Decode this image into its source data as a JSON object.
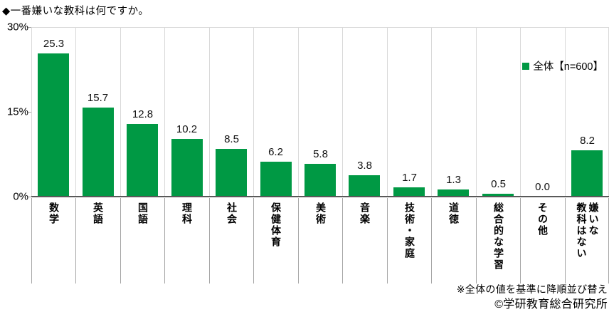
{
  "title": "◆一番嫌いな教科は何ですか。",
  "legend": {
    "label": "全体【n=600】",
    "marker_color": "#009944"
  },
  "chart_data": {
    "type": "bar",
    "title": "一番嫌いな教科は何ですか。",
    "series_name": "全体【n=600】",
    "categories": [
      "数学",
      "英語",
      "国語",
      "理科",
      "社会",
      "保健体育",
      "美術",
      "音楽",
      "技術・家庭",
      "道徳",
      "総合的な学習",
      "その他",
      "嫌いな\n教科はない"
    ],
    "values": [
      25.3,
      15.7,
      12.8,
      10.2,
      8.5,
      6.2,
      5.8,
      3.8,
      1.7,
      1.3,
      0.5,
      0.0,
      8.2
    ],
    "ylim": [
      0,
      30
    ],
    "yticks": [
      {
        "label": "30%",
        "value": 30
      },
      {
        "label": "15%",
        "value": 15
      },
      {
        "label": "0%",
        "value": 0
      }
    ],
    "bar_color": "#009944",
    "value_label_format": "one-decimal",
    "legend_position": "top-right inside plot",
    "grid": "vertical category separators only, light top border, no horizontal gridlines",
    "x_label_orientation": "vertical"
  },
  "footnote": "※全体の値を基準に降順並び替え",
  "copyright": "©学研教育総合研究所"
}
